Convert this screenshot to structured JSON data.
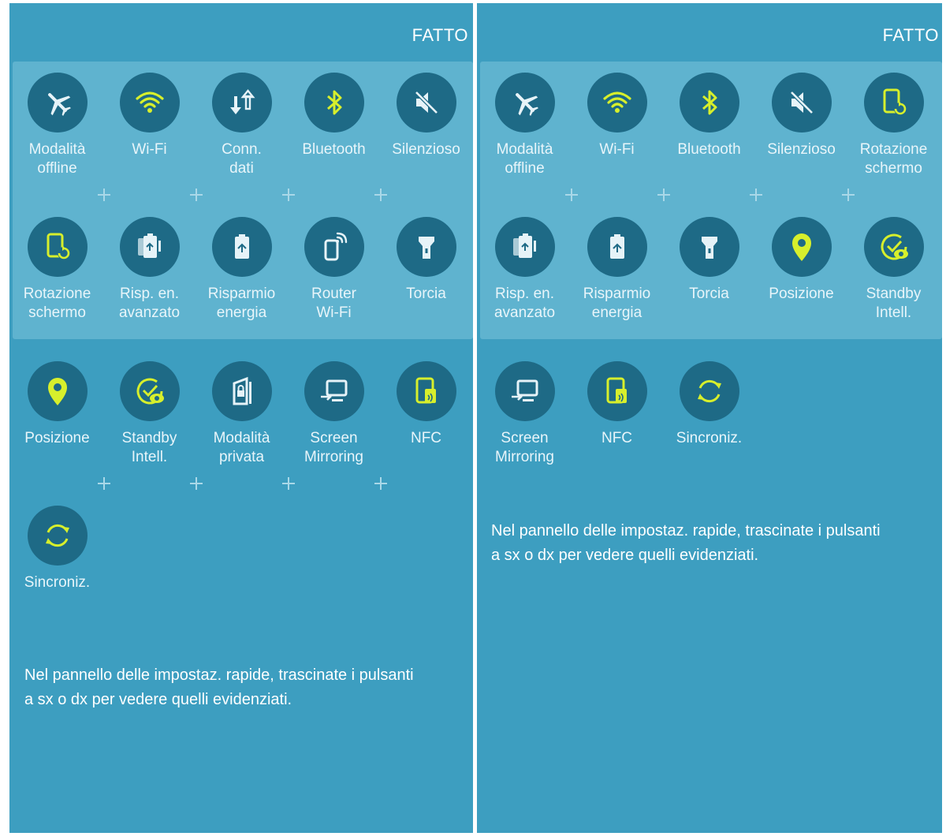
{
  "done_label": "FATTO",
  "hint": "Nel pannello delle impostaz. rapide, trascinate i pulsanti a sx o dx per vedere quelli evidenziati.",
  "colors": {
    "background": "#3d9ec0",
    "panel": "#5fb3cf",
    "icon_circle": "#1e6a86",
    "active_icon": "#d7ef2c",
    "inactive_icon": "#e6f3f8"
  },
  "left": {
    "tiles": [
      {
        "label": "Modalità\noffline",
        "icon": "airplane-icon",
        "active": false
      },
      {
        "label": "Wi-Fi",
        "icon": "wifi-icon",
        "active": true
      },
      {
        "label": "Conn.\ndati",
        "icon": "mobile-data-icon",
        "active": false
      },
      {
        "label": "Bluetooth",
        "icon": "bluetooth-icon",
        "active": true
      },
      {
        "label": "Silenzioso",
        "icon": "mute-icon",
        "active": false
      },
      {
        "label": "Rotazione\nschermo",
        "icon": "screen-rotation-icon",
        "active": true
      },
      {
        "label": "Risp. en.\navanzato",
        "icon": "ultra-power-saving-icon",
        "active": false
      },
      {
        "label": "Risparmio\nenergia",
        "icon": "power-saving-icon",
        "active": false
      },
      {
        "label": "Router\nWi-Fi",
        "icon": "wifi-router-icon",
        "active": false
      },
      {
        "label": "Torcia",
        "icon": "torch-icon",
        "active": false
      },
      {
        "label": "Posizione",
        "icon": "location-icon",
        "active": true
      },
      {
        "label": "Standby\nIntell.",
        "icon": "smart-stay-icon",
        "active": true
      },
      {
        "label": "Modalità\nprivata",
        "icon": "private-mode-icon",
        "active": false
      },
      {
        "label": "Screen\nMirroring",
        "icon": "screen-mirroring-icon",
        "active": false
      },
      {
        "label": "NFC",
        "icon": "nfc-icon",
        "active": true
      },
      {
        "label": "Sincroniz.",
        "icon": "sync-icon",
        "active": true
      }
    ]
  },
  "right": {
    "tiles": [
      {
        "label": "Modalità\noffline",
        "icon": "airplane-icon",
        "active": false
      },
      {
        "label": "Wi-Fi",
        "icon": "wifi-icon",
        "active": true
      },
      {
        "label": "Bluetooth",
        "icon": "bluetooth-icon",
        "active": true
      },
      {
        "label": "Silenzioso",
        "icon": "mute-icon",
        "active": false
      },
      {
        "label": "Rotazione\nschermo",
        "icon": "screen-rotation-icon",
        "active": true
      },
      {
        "label": "Risp. en.\navanzato",
        "icon": "ultra-power-saving-icon",
        "active": false
      },
      {
        "label": "Risparmio\nenergia",
        "icon": "power-saving-icon",
        "active": false
      },
      {
        "label": "Torcia",
        "icon": "torch-icon",
        "active": false
      },
      {
        "label": "Posizione",
        "icon": "location-icon",
        "active": true
      },
      {
        "label": "Standby\nIntell.",
        "icon": "smart-stay-icon",
        "active": true
      },
      {
        "label": "Screen\nMirroring",
        "icon": "screen-mirroring-icon",
        "active": false
      },
      {
        "label": "NFC",
        "icon": "nfc-icon",
        "active": true
      },
      {
        "label": "Sincroniz.",
        "icon": "sync-icon",
        "active": true
      }
    ]
  }
}
